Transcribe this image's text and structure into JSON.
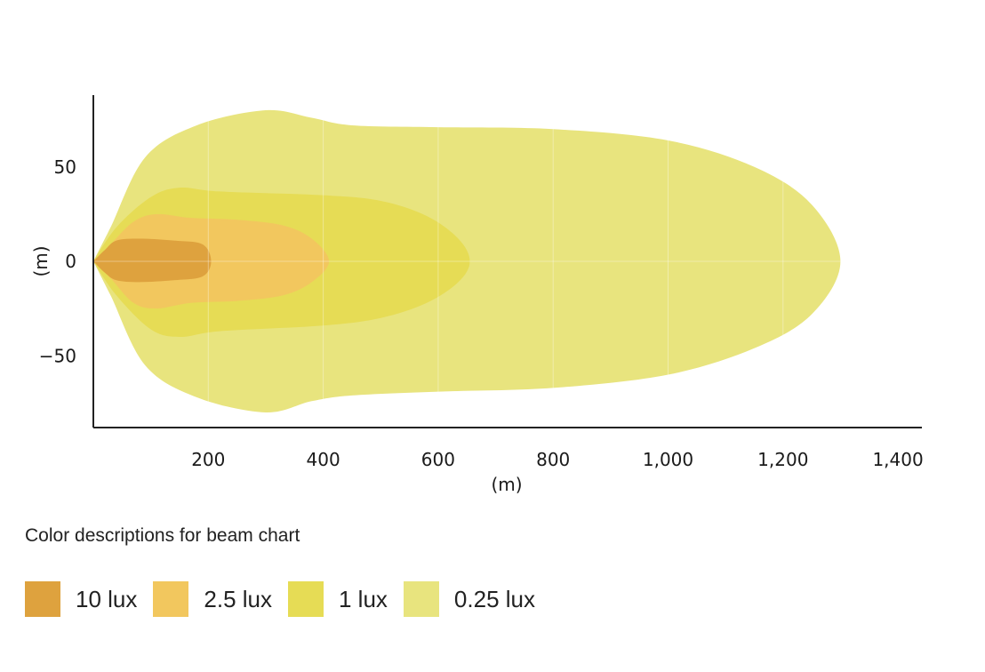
{
  "chart_data": {
    "type": "area",
    "title": "",
    "xlabel": "(m)",
    "ylabel": "(m)",
    "xlim": [
      0,
      1440
    ],
    "ylim": [
      -88,
      88
    ],
    "xticks": [
      200,
      400,
      600,
      800,
      1000,
      1200,
      1400
    ],
    "xtick_labels": [
      "200",
      "400",
      "600",
      "800",
      "1,000",
      "1,200",
      "1,400"
    ],
    "yticks": [
      50,
      0,
      -50
    ],
    "ytick_labels": [
      "50",
      "0",
      "−50"
    ],
    "grid": true,
    "legend_placement": "bottom-left",
    "series": [
      {
        "name": "0.25 lux",
        "color": "#e8e47e",
        "upper": [
          [
            0,
            0
          ],
          [
            30,
            18
          ],
          [
            90,
            55
          ],
          [
            180,
            72
          ],
          [
            300,
            80
          ],
          [
            380,
            76
          ],
          [
            450,
            72
          ],
          [
            600,
            71
          ],
          [
            800,
            70
          ],
          [
            1000,
            64
          ],
          [
            1150,
            50
          ],
          [
            1250,
            30
          ],
          [
            1300,
            0
          ]
        ],
        "lower": [
          [
            0,
            0
          ],
          [
            30,
            -18
          ],
          [
            90,
            -55
          ],
          [
            180,
            -72
          ],
          [
            300,
            -80
          ],
          [
            380,
            -74
          ],
          [
            450,
            -71
          ],
          [
            600,
            -69
          ],
          [
            800,
            -67
          ],
          [
            1000,
            -60
          ],
          [
            1150,
            -46
          ],
          [
            1250,
            -28
          ],
          [
            1300,
            0
          ]
        ]
      },
      {
        "name": "1 lux",
        "color": "#e6dc55",
        "upper": [
          [
            0,
            0
          ],
          [
            40,
            18
          ],
          [
            100,
            34
          ],
          [
            150,
            39
          ],
          [
            220,
            37
          ],
          [
            400,
            35
          ],
          [
            500,
            32
          ],
          [
            580,
            24
          ],
          [
            635,
            12
          ],
          [
            655,
            0
          ]
        ],
        "lower": [
          [
            0,
            0
          ],
          [
            40,
            -18
          ],
          [
            100,
            -36
          ],
          [
            150,
            -40
          ],
          [
            220,
            -37
          ],
          [
            400,
            -34
          ],
          [
            500,
            -30
          ],
          [
            580,
            -22
          ],
          [
            635,
            -11
          ],
          [
            655,
            0
          ]
        ]
      },
      {
        "name": "2.5 lux",
        "color": "#f2c75e",
        "upper": [
          [
            0,
            0
          ],
          [
            30,
            9
          ],
          [
            70,
            21
          ],
          [
            110,
            25
          ],
          [
            170,
            23
          ],
          [
            250,
            22
          ],
          [
            330,
            19
          ],
          [
            380,
            12
          ],
          [
            410,
            0
          ]
        ],
        "lower": [
          [
            0,
            0
          ],
          [
            30,
            -9
          ],
          [
            70,
            -22
          ],
          [
            110,
            -25
          ],
          [
            170,
            -22
          ],
          [
            250,
            -21
          ],
          [
            330,
            -18
          ],
          [
            380,
            -11
          ],
          [
            410,
            0
          ]
        ]
      },
      {
        "name": "10 lux",
        "color": "#dea23e",
        "upper": [
          [
            0,
            0
          ],
          [
            20,
            6
          ],
          [
            40,
            11
          ],
          [
            80,
            12
          ],
          [
            140,
            11
          ],
          [
            190,
            9
          ],
          [
            205,
            0
          ]
        ],
        "lower": [
          [
            0,
            0
          ],
          [
            20,
            -6
          ],
          [
            40,
            -10
          ],
          [
            80,
            -11
          ],
          [
            140,
            -10
          ],
          [
            190,
            -8
          ],
          [
            205,
            0
          ]
        ]
      }
    ]
  },
  "legend": {
    "title": "Color descriptions for beam chart",
    "items": [
      {
        "label": "10 lux",
        "color": "#dea23e"
      },
      {
        "label": "2.5 lux",
        "color": "#f2c75e"
      },
      {
        "label": "1 lux",
        "color": "#e6dc55"
      },
      {
        "label": "0.25 lux",
        "color": "#e8e47e"
      }
    ]
  }
}
